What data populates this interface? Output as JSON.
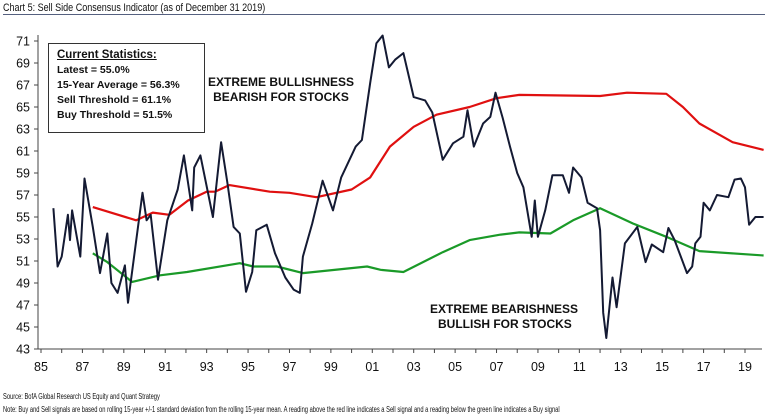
{
  "title": "Chart 5: Sell Side Consensus Indicator (as of December 31 2019)",
  "stats_box": {
    "heading": "Current Statistics:",
    "lines": [
      "Latest = 55.0%",
      "15-Year Average = 56.3%",
      "Sell Threshold = 61.1%",
      "Buy Threshold = 51.5%"
    ]
  },
  "annotations": {
    "bull": [
      "EXTREME BULLISHNESS",
      "BEARISH FOR STOCKS"
    ],
    "bear": [
      "EXTREME BEARISHNESS",
      "BULLISH FOR STOCKS"
    ]
  },
  "footer": {
    "source": "Source: BofA Global Research US Equity and Quant Strategy",
    "note": "Note: Buy and Sell signals are based on rolling 15-year +/-1 standard deviation from the rolling 15-year mean. A reading above the red line indicates a Sell signal and a reading below the green line indicates a Buy signal"
  },
  "chart_data": {
    "type": "line",
    "xlim": [
      1985,
      2019
    ],
    "ylim": [
      43,
      71
    ],
    "x_tick_labels": [
      "85",
      "87",
      "89",
      "91",
      "93",
      "95",
      "97",
      "99",
      "01",
      "03",
      "05",
      "07",
      "09",
      "11",
      "13",
      "15",
      "17",
      "19"
    ],
    "y_tick_labels": [
      "43",
      "45",
      "47",
      "49",
      "51",
      "53",
      "55",
      "57",
      "59",
      "61",
      "63",
      "65",
      "67",
      "69",
      "71"
    ],
    "grid": false,
    "colors": {
      "indicator": "#141a33",
      "sell_threshold": "#e01010",
      "buy_threshold": "#1a9a28"
    },
    "series": [
      {
        "key": "indicator",
        "points": [
          [
            1985.6,
            55.8
          ],
          [
            1985.8,
            50.5
          ],
          [
            1986.0,
            51.4
          ],
          [
            1986.3,
            55.2
          ],
          [
            1986.4,
            52.9
          ],
          [
            1986.5,
            55.6
          ],
          [
            1986.9,
            51.4
          ],
          [
            1987.1,
            58.5
          ],
          [
            1987.5,
            54.1
          ],
          [
            1987.85,
            49.9
          ],
          [
            1988.2,
            53.5
          ],
          [
            1988.4,
            49.0
          ],
          [
            1988.7,
            48.1
          ],
          [
            1989.05,
            50.6
          ],
          [
            1989.2,
            47.2
          ],
          [
            1989.9,
            57.2
          ],
          [
            1990.1,
            54.7
          ],
          [
            1990.3,
            55.2
          ],
          [
            1990.65,
            49.3
          ],
          [
            1991.1,
            54.7
          ],
          [
            1991.6,
            57.5
          ],
          [
            1991.9,
            60.6
          ],
          [
            1992.3,
            55.6
          ],
          [
            1992.4,
            59.5
          ],
          [
            1992.7,
            60.6
          ],
          [
            1993.3,
            55.0
          ],
          [
            1993.7,
            61.8
          ],
          [
            1994.0,
            58.1
          ],
          [
            1994.3,
            54.1
          ],
          [
            1994.6,
            53.5
          ],
          [
            1994.9,
            48.2
          ],
          [
            1995.2,
            50.0
          ],
          [
            1995.4,
            53.8
          ],
          [
            1995.9,
            54.3
          ],
          [
            1996.3,
            51.7
          ],
          [
            1996.8,
            49.5
          ],
          [
            1997.2,
            48.4
          ],
          [
            1997.5,
            48.1
          ],
          [
            1997.65,
            51.4
          ],
          [
            1998.1,
            54.4
          ],
          [
            1998.6,
            58.3
          ],
          [
            1999.1,
            55.6
          ],
          [
            1999.5,
            58.6
          ],
          [
            2000.2,
            61.4
          ],
          [
            2000.5,
            62.0
          ],
          [
            2000.9,
            67.2
          ],
          [
            2001.2,
            70.8
          ],
          [
            2001.5,
            71.5
          ],
          [
            2001.8,
            68.6
          ],
          [
            2002.1,
            69.3
          ],
          [
            2002.5,
            69.9
          ],
          [
            2003.0,
            65.9
          ],
          [
            2003.55,
            65.6
          ],
          [
            2003.9,
            64.5
          ],
          [
            2004.4,
            60.2
          ],
          [
            2004.9,
            61.7
          ],
          [
            2005.4,
            62.3
          ],
          [
            2005.6,
            64.7
          ],
          [
            2005.9,
            61.4
          ],
          [
            2006.35,
            63.5
          ],
          [
            2006.7,
            64.1
          ],
          [
            2006.95,
            66.3
          ],
          [
            2007.3,
            64.0
          ],
          [
            2007.65,
            61.4
          ],
          [
            2008.0,
            59.0
          ],
          [
            2008.3,
            57.7
          ],
          [
            2008.7,
            53.2
          ],
          [
            2008.85,
            56.5
          ],
          [
            2009.0,
            53.2
          ],
          [
            2009.35,
            55.6
          ],
          [
            2009.7,
            58.8
          ],
          [
            2010.2,
            58.8
          ],
          [
            2010.5,
            57.2
          ],
          [
            2010.7,
            59.5
          ],
          [
            2011.1,
            58.6
          ],
          [
            2011.4,
            56.3
          ],
          [
            2011.85,
            55.8
          ],
          [
            2012.0,
            53.8
          ],
          [
            2012.15,
            46.3
          ],
          [
            2012.3,
            44.0
          ],
          [
            2012.6,
            49.5
          ],
          [
            2012.8,
            46.8
          ],
          [
            2013.2,
            52.6
          ],
          [
            2013.8,
            54.1
          ],
          [
            2014.2,
            50.9
          ],
          [
            2014.5,
            52.5
          ],
          [
            2015.05,
            51.8
          ],
          [
            2015.3,
            54.0
          ],
          [
            2015.6,
            52.9
          ],
          [
            2016.2,
            49.9
          ],
          [
            2016.45,
            50.5
          ],
          [
            2016.6,
            52.6
          ],
          [
            2016.85,
            53.2
          ],
          [
            2017.0,
            56.3
          ],
          [
            2017.3,
            55.6
          ],
          [
            2017.65,
            57.0
          ],
          [
            2018.2,
            56.8
          ],
          [
            2018.5,
            58.4
          ],
          [
            2018.8,
            58.5
          ],
          [
            2019.0,
            57.7
          ],
          [
            2019.2,
            54.3
          ],
          [
            2019.5,
            55.0
          ],
          [
            2019.9,
            55.0
          ]
        ]
      },
      {
        "key": "sell_threshold",
        "points": [
          [
            1987.5,
            55.9
          ],
          [
            1989.6,
            54.7
          ],
          [
            1990.4,
            55.4
          ],
          [
            1991.2,
            55.2
          ],
          [
            1992.1,
            56.5
          ],
          [
            1993.0,
            57.3
          ],
          [
            1993.4,
            57.3
          ],
          [
            1994.1,
            57.9
          ],
          [
            1996.05,
            57.3
          ],
          [
            1997.0,
            57.2
          ],
          [
            1998.3,
            56.8
          ],
          [
            2000.0,
            57.5
          ],
          [
            2000.9,
            58.6
          ],
          [
            2001.85,
            61.4
          ],
          [
            2003.0,
            63.2
          ],
          [
            2004.1,
            64.3
          ],
          [
            2005.7,
            65.0
          ],
          [
            2007.0,
            65.8
          ],
          [
            2008.1,
            66.1
          ],
          [
            2012.0,
            66.0
          ],
          [
            2013.3,
            66.3
          ],
          [
            2015.2,
            66.2
          ],
          [
            2016.0,
            65.0
          ],
          [
            2016.8,
            63.5
          ],
          [
            2018.4,
            61.8
          ],
          [
            2019.9,
            61.1
          ]
        ]
      },
      {
        "key": "buy_threshold",
        "points": [
          [
            1987.5,
            51.7
          ],
          [
            1988.2,
            50.9
          ],
          [
            1989.4,
            49.1
          ],
          [
            1990.75,
            49.7
          ],
          [
            1992.05,
            50.0
          ],
          [
            1994.6,
            50.8
          ],
          [
            1995.25,
            50.5
          ],
          [
            1996.4,
            50.5
          ],
          [
            1997.65,
            49.9
          ],
          [
            2000.75,
            50.5
          ],
          [
            2001.4,
            50.2
          ],
          [
            2002.5,
            50.0
          ],
          [
            2004.4,
            51.8
          ],
          [
            2005.7,
            52.9
          ],
          [
            2007.2,
            53.4
          ],
          [
            2008.1,
            53.6
          ],
          [
            2009.6,
            53.5
          ],
          [
            2010.7,
            54.7
          ],
          [
            2012.0,
            55.8
          ],
          [
            2013.6,
            54.4
          ],
          [
            2015.2,
            53.2
          ],
          [
            2016.8,
            51.9
          ],
          [
            2019.9,
            51.5
          ]
        ]
      }
    ]
  }
}
